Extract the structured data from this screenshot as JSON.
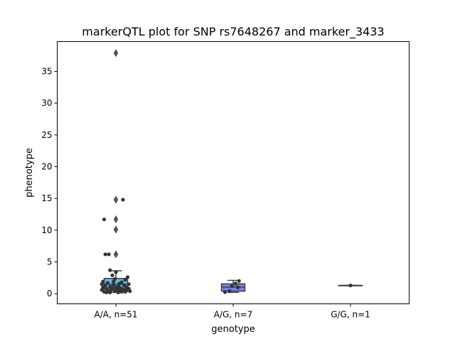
{
  "chart_data": {
    "type": "box",
    "title": "markerQTL plot for SNP rs7648267 and marker_3433",
    "xlabel": "genotype",
    "ylabel": "phenotype",
    "ylim": [
      -1.6,
      39.7
    ],
    "yticks": [
      0,
      5,
      10,
      15,
      20,
      25,
      30,
      35
    ],
    "categories": [
      "A/A, n=51",
      "A/G, n=7",
      "G/G, n=1"
    ],
    "boxes": [
      {
        "category": "A/A, n=51",
        "q1": 0.7,
        "median": 1.5,
        "q3": 2.4,
        "whisker_low": 0.2,
        "whisker_high": 3.6,
        "outliers": [
          6.2,
          10.1,
          11.7,
          14.8,
          37.9
        ],
        "color": "#5bbcea"
      },
      {
        "category": "A/G, n=7",
        "q1": 0.4,
        "median": 1.05,
        "q3": 1.55,
        "whisker_low": 0.2,
        "whisker_high": 2.1,
        "outliers": [],
        "color": "#7b7ff0"
      },
      {
        "category": "G/G, n=1",
        "q1": 1.3,
        "median": 1.3,
        "q3": 1.3,
        "whisker_low": 1.3,
        "whisker_high": 1.3,
        "outliers": [],
        "color": "#8a8af0"
      }
    ],
    "points": [
      {
        "category": 0,
        "jitter": -0.1,
        "y": 11.7
      },
      {
        "category": 0,
        "jitter": 0.06,
        "y": 14.8
      },
      {
        "category": 0,
        "jitter": -0.09,
        "y": 6.2
      },
      {
        "category": 0,
        "jitter": -0.06,
        "y": 6.2
      },
      {
        "category": 0,
        "jitter": -0.05,
        "y": 3.7
      },
      {
        "category": 0,
        "jitter": 0.0,
        "y": 3.4
      },
      {
        "category": 0,
        "jitter": -0.03,
        "y": 2.9
      },
      {
        "category": 0,
        "jitter": 0.1,
        "y": 2.6
      },
      {
        "category": 0,
        "jitter": -0.01,
        "y": 2.3
      },
      {
        "category": 0,
        "jitter": 0.08,
        "y": 2.2
      },
      {
        "category": 0,
        "jitter": -0.11,
        "y": 1.9
      },
      {
        "category": 0,
        "jitter": 0.05,
        "y": 1.8
      },
      {
        "category": 0,
        "jitter": -0.07,
        "y": 1.7
      },
      {
        "category": 0,
        "jitter": 0.03,
        "y": 1.6
      },
      {
        "category": 0,
        "jitter": 0.11,
        "y": 1.5
      },
      {
        "category": 0,
        "jitter": -0.12,
        "y": 1.5
      },
      {
        "category": 0,
        "jitter": -0.02,
        "y": 1.4
      },
      {
        "category": 0,
        "jitter": 0.07,
        "y": 1.3
      },
      {
        "category": 0,
        "jitter": -0.09,
        "y": 1.3
      },
      {
        "category": 0,
        "jitter": 0.02,
        "y": 1.2
      },
      {
        "category": 0,
        "jitter": -0.05,
        "y": 1.1
      },
      {
        "category": 0,
        "jitter": 0.09,
        "y": 1.0
      },
      {
        "category": 0,
        "jitter": -0.11,
        "y": 1.0
      },
      {
        "category": 0,
        "jitter": 0.04,
        "y": 0.9
      },
      {
        "category": 0,
        "jitter": -0.03,
        "y": 0.9
      },
      {
        "category": 0,
        "jitter": 0.11,
        "y": 0.8
      },
      {
        "category": 0,
        "jitter": -0.08,
        "y": 0.8
      },
      {
        "category": 0,
        "jitter": 0.01,
        "y": 0.7
      },
      {
        "category": 0,
        "jitter": 0.06,
        "y": 0.7
      },
      {
        "category": 0,
        "jitter": -0.12,
        "y": 0.6
      },
      {
        "category": 0,
        "jitter": -0.04,
        "y": 0.6
      },
      {
        "category": 0,
        "jitter": 0.09,
        "y": 0.5
      },
      {
        "category": 0,
        "jitter": 0.03,
        "y": 0.5
      },
      {
        "category": 0,
        "jitter": -0.07,
        "y": 0.4
      },
      {
        "category": 0,
        "jitter": 0.12,
        "y": 0.4
      },
      {
        "category": 0,
        "jitter": -0.01,
        "y": 0.4
      },
      {
        "category": 0,
        "jitter": 0.05,
        "y": 0.3
      },
      {
        "category": 0,
        "jitter": -0.1,
        "y": 0.3
      },
      {
        "category": 0,
        "jitter": 0.08,
        "y": 0.3
      },
      {
        "category": 0,
        "jitter": -0.05,
        "y": 0.2
      },
      {
        "category": 0,
        "jitter": 0.02,
        "y": 0.2
      },
      {
        "category": 0,
        "jitter": -0.08,
        "y": 0.2
      },
      {
        "category": 0,
        "jitter": 0.1,
        "y": 0.6
      },
      {
        "category": 0,
        "jitter": -0.02,
        "y": 1.9
      },
      {
        "category": 0,
        "jitter": 0.0,
        "y": 1.0
      },
      {
        "category": 1,
        "jitter": 0.05,
        "y": 2.0
      },
      {
        "category": 1,
        "jitter": 0.02,
        "y": 1.6
      },
      {
        "category": 1,
        "jitter": -0.01,
        "y": 1.2
      },
      {
        "category": 1,
        "jitter": 0.04,
        "y": 1.0
      },
      {
        "category": 1,
        "jitter": -0.03,
        "y": 0.4
      },
      {
        "category": 1,
        "jitter": -0.07,
        "y": 0.25
      },
      {
        "category": 2,
        "jitter": 0.0,
        "y": 1.3
      }
    ]
  }
}
